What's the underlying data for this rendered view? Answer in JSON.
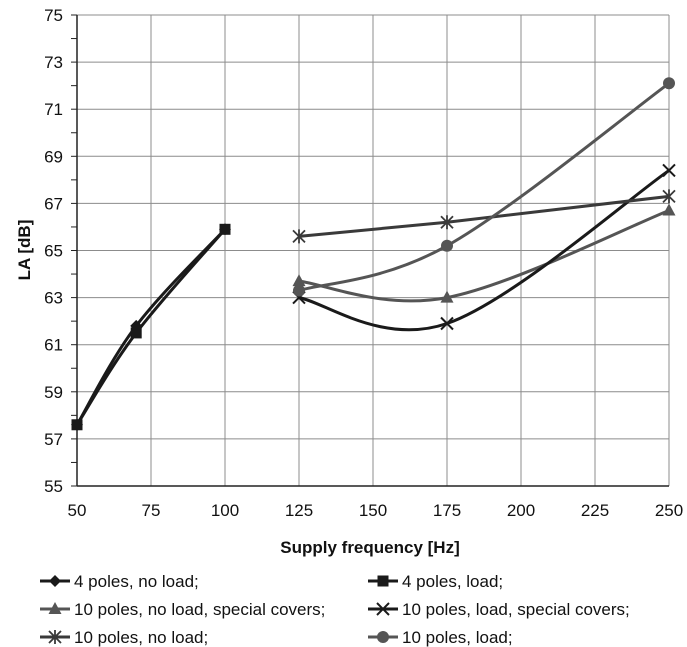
{
  "chart_data": {
    "type": "line",
    "xlabel": "Supply frequency [Hz]",
    "ylabel": "LA [dB]",
    "ylim": [
      55,
      75
    ],
    "y_ticks": [
      55,
      57,
      59,
      61,
      63,
      65,
      67,
      69,
      71,
      73,
      75
    ],
    "x_ticks": [
      50,
      75,
      100,
      125,
      150,
      175,
      200,
      225,
      250
    ],
    "grid": true,
    "legend_position": "bottom",
    "series": [
      {
        "name": "4 poles, no load;",
        "marker": "diamond",
        "color": "#1a1a1a",
        "smooth": true,
        "x": [
          50,
          70,
          100
        ],
        "y": [
          57.6,
          61.8,
          65.9
        ]
      },
      {
        "name": "4 poles, load;",
        "marker": "square",
        "color": "#1a1a1a",
        "smooth": true,
        "x": [
          50,
          70,
          100
        ],
        "y": [
          57.6,
          61.5,
          65.9
        ]
      },
      {
        "name": "10 poles, no load, special covers;",
        "marker": "triangle",
        "color": "#555555",
        "smooth": true,
        "x": [
          125,
          175,
          250
        ],
        "y": [
          63.7,
          63.0,
          66.7
        ]
      },
      {
        "name": "10 poles, load, special covers;",
        "marker": "x",
        "color": "#1a1a1a",
        "smooth": true,
        "x": [
          125,
          175,
          250
        ],
        "y": [
          63.0,
          61.9,
          68.4
        ]
      },
      {
        "name": "10 poles, no load;",
        "marker": "star",
        "color": "#3a3a3a",
        "smooth": false,
        "x": [
          125,
          175,
          250
        ],
        "y": [
          65.6,
          66.2,
          67.3
        ]
      },
      {
        "name": "10 poles, load;",
        "marker": "circle",
        "color": "#555555",
        "smooth": true,
        "x": [
          125,
          175,
          250
        ],
        "y": [
          63.3,
          65.2,
          72.1
        ]
      }
    ]
  }
}
